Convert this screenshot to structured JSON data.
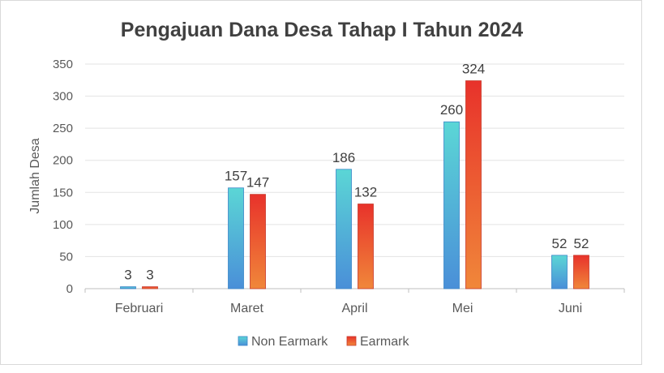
{
  "chart_data": {
    "type": "bar",
    "title": "Pengajuan Dana Desa Tahap I Tahun 2024",
    "xlabel": "",
    "ylabel": "Jumlah Desa",
    "ylim": [
      0,
      350
    ],
    "yticks": [
      0,
      50,
      100,
      150,
      200,
      250,
      300,
      350
    ],
    "categories": [
      "Februari",
      "Maret",
      "April",
      "Mei",
      "Juni"
    ],
    "series": [
      {
        "name": "Non Earmark",
        "values": [
          3,
          157,
          186,
          260,
          52
        ],
        "color_top": "#5BD6D6",
        "color_bottom": "#4A8FD8"
      },
      {
        "name": "Earmark",
        "values": [
          3,
          147,
          132,
          324,
          52
        ],
        "color_top": "#E8322B",
        "color_bottom": "#F0873A"
      }
    ],
    "grid": true,
    "legend_position": "bottom",
    "data_labels": true
  }
}
